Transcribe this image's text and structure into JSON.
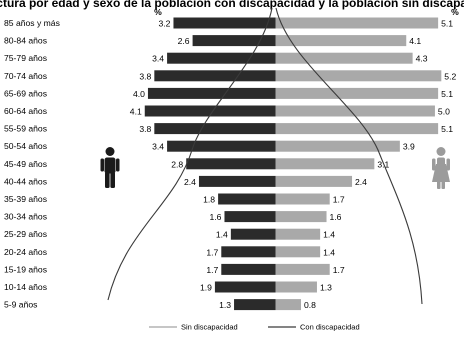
{
  "chart_data": {
    "type": "bar",
    "title": "Estructura por edad y sexo de la población con discapacidad y la población sin discapacidad",
    "unit": "%",
    "categories": [
      "85 años y más",
      "80-84 años",
      "75-79 años",
      "70-74 años",
      "65-69 años",
      "60-64 años",
      "55-59 años",
      "50-54 años",
      "45-49 años",
      "40-44 años",
      "35-39 años",
      "30-34 años",
      "25-29 años",
      "20-24 años",
      "15-19 años",
      "10-14 años",
      "5-9 años"
    ],
    "series": [
      {
        "values": [
          3.2,
          2.6,
          3.4,
          3.8,
          4.0,
          4.1,
          3.8,
          3.4,
          2.8,
          2.4,
          1.8,
          1.6,
          1.4,
          1.7,
          1.7,
          1.9,
          1.3
        ],
        "color": "#2b2b2b"
      },
      {
        "values": [
          5.1,
          4.1,
          4.3,
          5.2,
          5.1,
          5.0,
          5.1,
          3.9,
          3.1,
          2.4,
          1.7,
          1.6,
          1.4,
          1.4,
          1.7,
          1.3,
          0.8
        ],
        "color": "#a9a9a9"
      }
    ],
    "lines": [
      {
        "name": "Sin discapacidad",
        "color": "#8c8c8c"
      },
      {
        "name": "Con discapacidad",
        "color": "#3a3a3a"
      }
    ],
    "xlim": [
      0,
      5.3
    ],
    "legend_position": "bottom"
  },
  "icons": {
    "male": "male-person-icon",
    "female": "female-person-icon"
  }
}
